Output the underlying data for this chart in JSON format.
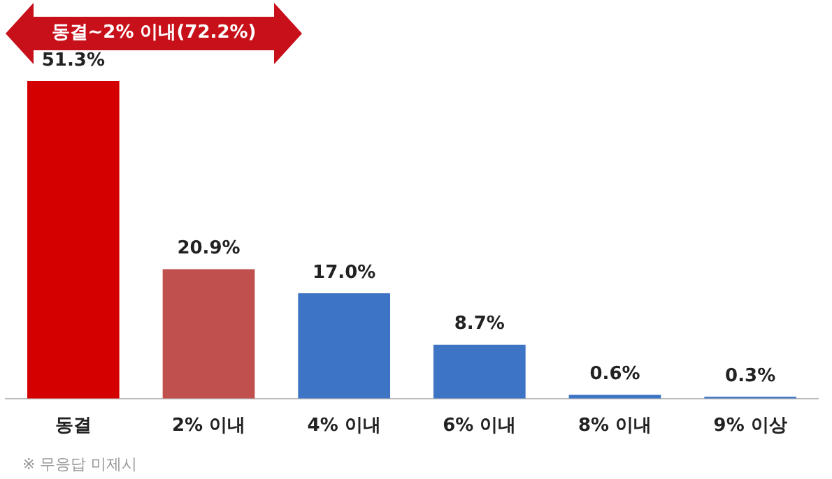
{
  "chart_data": {
    "type": "bar",
    "categories": [
      "동결",
      "2% 이내",
      "4% 이내",
      "6% 이내",
      "8% 이내",
      "9% 이상"
    ],
    "values": [
      51.3,
      20.9,
      17.0,
      8.7,
      0.6,
      0.3
    ],
    "value_labels": [
      "51.3%",
      "20.9%",
      "17.0%",
      "8.7%",
      "0.6%",
      "0.3%"
    ],
    "colors": [
      "#d40000",
      "#c0504d",
      "#3d74c4",
      "#3d74c4",
      "#3d74c4",
      "#3d74c4"
    ],
    "annotations": [
      "동결~2% 이내(72.2%)",
      "※ 무응답 미제시"
    ],
    "grid": false,
    "legend": false
  }
}
